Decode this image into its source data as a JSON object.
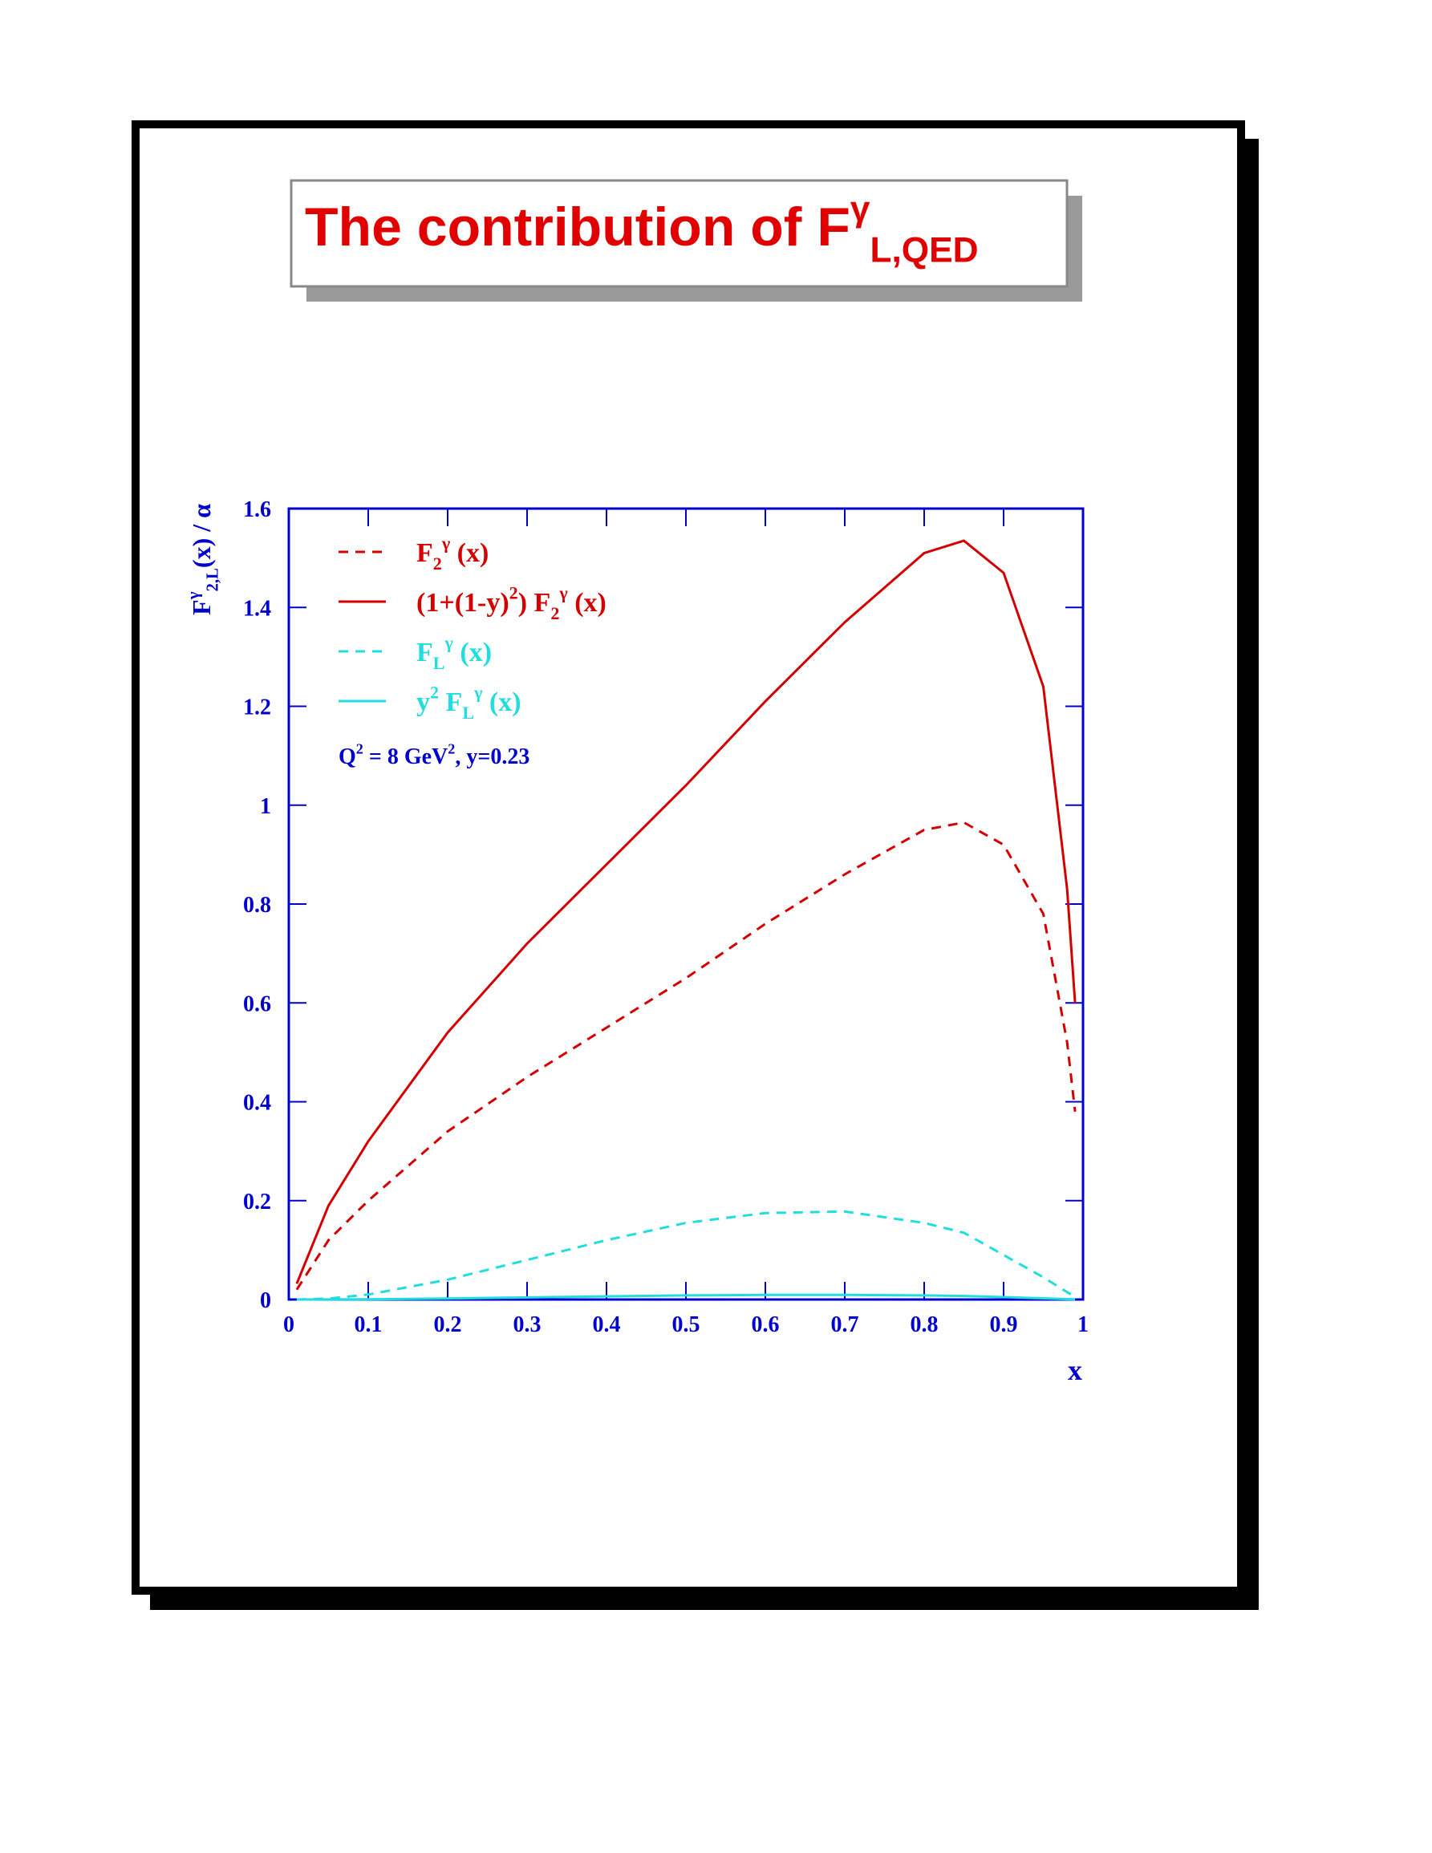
{
  "chart_data": {
    "type": "line",
    "title": "The contribution of F^{γ}_{L,QED}",
    "x_label": "x",
    "y_label": "F^{γ}_{2,L}(x) / α",
    "annotation": "Q^{2} = 8 GeV^{2},  y=0.23",
    "x": [
      0.01,
      0.05,
      0.1,
      0.2,
      0.3,
      0.4,
      0.5,
      0.6,
      0.7,
      0.8,
      0.85,
      0.9,
      0.95,
      0.98,
      0.99
    ],
    "series": [
      {
        "name": "F_{2}^{γ} (x)",
        "color": "#d40000",
        "dash": true,
        "values": [
          0.02,
          0.12,
          0.2,
          0.34,
          0.45,
          0.55,
          0.65,
          0.76,
          0.86,
          0.95,
          0.965,
          0.92,
          0.78,
          0.52,
          0.38
        ]
      },
      {
        "name": "(1+(1-y)^{2}) F_{2}^{γ} (x)",
        "color": "#d40000",
        "dash": false,
        "values": [
          0.032,
          0.19,
          0.32,
          0.54,
          0.72,
          0.88,
          1.04,
          1.21,
          1.37,
          1.51,
          1.535,
          1.47,
          1.24,
          0.83,
          0.6
        ]
      },
      {
        "name": "F_{L}^{γ} (x)",
        "color": "#22dddd",
        "dash": true,
        "values": [
          0.0,
          0.002,
          0.01,
          0.04,
          0.08,
          0.12,
          0.155,
          0.175,
          0.178,
          0.155,
          0.135,
          0.09,
          0.045,
          0.015,
          0.005
        ]
      },
      {
        "name": "y^{2} F_{L}^{γ} (x)",
        "color": "#22dddd",
        "dash": false,
        "values": [
          0.0,
          0.0001,
          0.0005,
          0.0021,
          0.0042,
          0.0063,
          0.0082,
          0.0093,
          0.0094,
          0.0082,
          0.0071,
          0.0048,
          0.0024,
          0.0008,
          0.0003
        ]
      }
    ],
    "xlim": [
      0,
      1
    ],
    "xticks": [
      0,
      0.1,
      0.2,
      0.3,
      0.4,
      0.5,
      0.6,
      0.7,
      0.8,
      0.9,
      1
    ],
    "ylim": [
      0,
      1.6
    ],
    "yticks": [
      0,
      0.2,
      0.4,
      0.6,
      0.8,
      1,
      1.2,
      1.4,
      1.6
    ],
    "axis_color": "#0000cc"
  }
}
